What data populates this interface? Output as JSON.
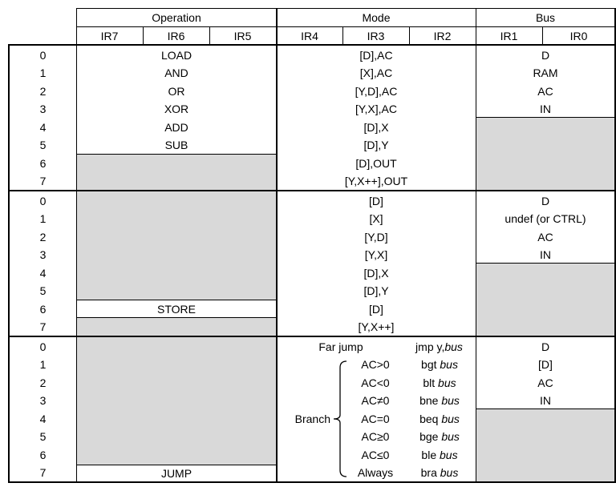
{
  "header": {
    "groups": {
      "operation": "Operation",
      "mode": "Mode",
      "bus": "Bus"
    },
    "bits": [
      "IR7",
      "IR6",
      "IR5",
      "IR4",
      "IR3",
      "IR2",
      "IR1",
      "IR0"
    ]
  },
  "row_numbers": [
    "0",
    "1",
    "2",
    "3",
    "4",
    "5",
    "6",
    "7"
  ],
  "section1": {
    "operation": [
      "LOAD",
      "AND",
      "OR",
      "XOR",
      "ADD",
      "SUB"
    ],
    "mode": [
      "[D],AC",
      "[X],AC",
      "[Y,D],AC",
      "[Y,X],AC",
      "[D],X",
      "[D],Y",
      "[D],OUT",
      "[Y,X++],OUT"
    ],
    "bus": [
      "D",
      "RAM",
      "AC",
      "IN"
    ]
  },
  "section2": {
    "operation_store": "STORE",
    "mode": [
      "[D]",
      "[X]",
      "[Y,D]",
      "[Y,X]",
      "[D],X",
      "[D],Y",
      "[D]",
      "[Y,X++]"
    ],
    "bus": [
      "D",
      "undef (or CTRL)",
      "AC",
      "IN"
    ]
  },
  "section3": {
    "operation_jump": "JUMP",
    "far_jump_label": "Far jump",
    "far_jump_mnemonic": "jmp y,",
    "far_jump_bus": "bus",
    "branch_label": "Branch",
    "conditions": [
      "AC>0",
      "AC<0",
      "AC≠0",
      "AC=0",
      "AC≥0",
      "AC≤0",
      "Always"
    ],
    "mnemonics": [
      "bgt",
      "blt",
      "bne",
      "beq",
      "bge",
      "ble",
      "bra"
    ],
    "mnemonic_bus": "bus",
    "bus": [
      "D",
      "[D]",
      "AC",
      "IN"
    ]
  },
  "colors": {
    "gray_fill": "#d9d9d9",
    "border": "#000000"
  }
}
